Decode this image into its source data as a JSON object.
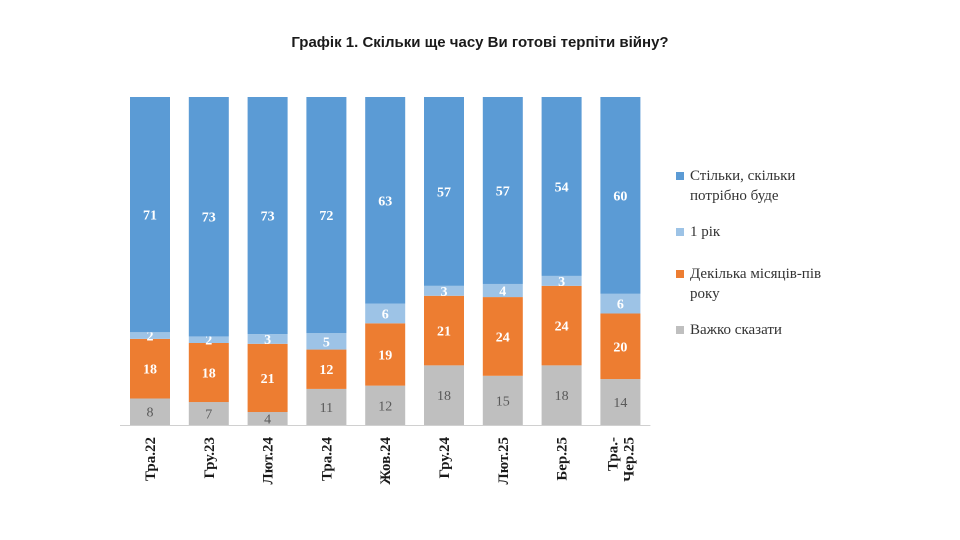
{
  "chart_data": {
    "type": "bar",
    "stacked": true,
    "title": "Графік 1. Скільки ще часу Ви готові терпіти війну?",
    "categories": [
      "Тра.22",
      "Гру.23",
      "Лют.24",
      "Тра.24",
      "Жов.24",
      "Гру.24",
      "Лют.25",
      "Бер.25",
      "Тра.-\nЧер.25"
    ],
    "series": [
      {
        "name": "Важко сказати",
        "color": "#bfbfbf",
        "label_color": "#595959",
        "values": [
          8,
          7,
          4,
          11,
          12,
          18,
          15,
          18,
          14
        ]
      },
      {
        "name": "Декілька місяців-пів року",
        "color": "#ed7d31",
        "label_color": "#ffffff",
        "values": [
          18,
          18,
          21,
          12,
          19,
          21,
          24,
          24,
          20
        ]
      },
      {
        "name": "1 рік",
        "color": "#9dc3e6",
        "label_color": "#ffffff",
        "values": [
          2,
          2,
          3,
          5,
          6,
          3,
          4,
          3,
          6
        ]
      },
      {
        "name": "Стільки, скільки потрібно буде",
        "color": "#5b9bd5",
        "label_color": "#ffffff",
        "values": [
          71,
          73,
          73,
          72,
          63,
          57,
          57,
          54,
          60
        ]
      }
    ],
    "legend_order": [
      3,
      2,
      1,
      0
    ],
    "legend_labels": [
      "Стільки, скільки\nпотрібно буде",
      "1 рік",
      "Декілька місяців-пів\nроку",
      "Важко сказати"
    ],
    "legend_position": "right",
    "ylim": [
      0,
      100
    ],
    "grid": false
  }
}
